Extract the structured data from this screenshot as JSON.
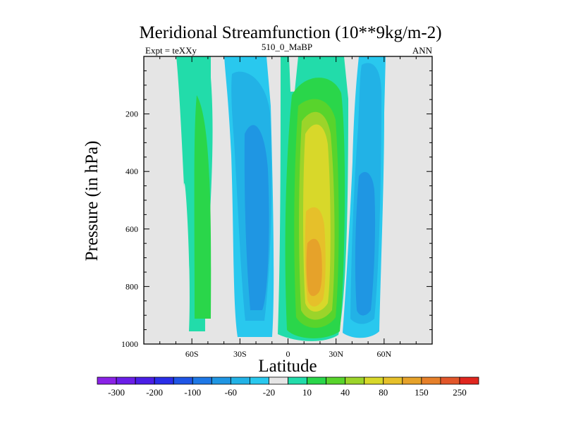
{
  "chart_data": {
    "type": "heatmap",
    "title": "Meridional Streamfunction (10**9kg/m-2)",
    "subtitle_left": "Expt = teXXy",
    "subtitle_center": "510_0_MaBP",
    "subtitle_right": "ANN",
    "xlabel": "Latitude",
    "ylabel": "Pressure (in hPa)",
    "xlim": [
      -90,
      90
    ],
    "ylim": [
      1000,
      0
    ],
    "x_ticks": [
      {
        "value": -60,
        "label": "60S"
      },
      {
        "value": -30,
        "label": "30S"
      },
      {
        "value": 0,
        "label": "0"
      },
      {
        "value": 30,
        "label": "30N"
      },
      {
        "value": 60,
        "label": "60N"
      }
    ],
    "y_ticks": [
      {
        "value": 200,
        "label": "200"
      },
      {
        "value": 400,
        "label": "400"
      },
      {
        "value": 600,
        "label": "600"
      },
      {
        "value": 800,
        "label": "800"
      },
      {
        "value": 1000,
        "label": "1000"
      }
    ],
    "colorbar": {
      "colors": [
        "#8a22e6",
        "#6b1ee8",
        "#4a1ee6",
        "#2a2ee8",
        "#1f55e6",
        "#1e78e6",
        "#1f96e3",
        "#22b2e6",
        "#29c8ee",
        "#e5e5e5",
        "#22dcaa",
        "#2ad64a",
        "#58d42c",
        "#9cd42a",
        "#d8d82a",
        "#e6c02a",
        "#e6a22a",
        "#e6802a",
        "#e2562a",
        "#e0261e"
      ],
      "labels": [
        "-300",
        "-200",
        "-100",
        "-60",
        "-20",
        "10",
        "40",
        "80",
        "150",
        "250"
      ]
    },
    "contour_regions": [
      {
        "name": "southern-cell-outer",
        "value_class": 10,
        "color": "#22dcaa"
      },
      {
        "name": "southern-cell-core",
        "value_class": 11,
        "color": "#2ad64a"
      },
      {
        "name": "southern-ferrel-outer",
        "value_class": 8,
        "color": "#29c8ee"
      },
      {
        "name": "southern-ferrel-core",
        "value_class": 7,
        "color": "#22b2e6"
      },
      {
        "name": "southern-ferrel-inner",
        "value_class": 6,
        "color": "#1f96e3"
      },
      {
        "name": "hadley-outer",
        "value_class": 10,
        "color": "#22dcaa"
      },
      {
        "name": "hadley-body",
        "value_class": 11,
        "color": "#2ad64a"
      },
      {
        "name": "hadley-mid",
        "value_class": 12,
        "color": "#58d42c"
      },
      {
        "name": "hadley-upper-core",
        "value_class": 13,
        "color": "#9cd42a"
      },
      {
        "name": "hadley-core",
        "value_class": 14,
        "color": "#d8d82a"
      },
      {
        "name": "hadley-center",
        "value_class": 15,
        "color": "#e6c02a"
      },
      {
        "name": "hadley-max",
        "value_class": 16,
        "color": "#e6a22a"
      },
      {
        "name": "northern-ferrel-outer",
        "value_class": 8,
        "color": "#29c8ee"
      },
      {
        "name": "northern-ferrel-core",
        "value_class": 7,
        "color": "#22b2e6"
      },
      {
        "name": "northern-ferrel-inner",
        "value_class": 6,
        "color": "#1f96e3"
      }
    ]
  },
  "colors": {
    "background": "#e5e5e5",
    "axis": "#000000"
  }
}
